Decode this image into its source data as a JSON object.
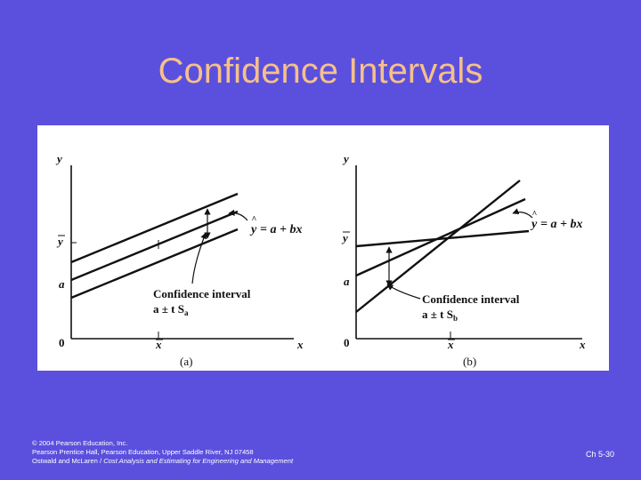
{
  "slide": {
    "title": "Confidence Intervals",
    "page_number": "Ch 5-30"
  },
  "footer": {
    "line1": "© 2004 Pearson Education, Inc.",
    "line2": "Pearson Prentice Hall, Pearson Education, Upper Saddle River, NJ 07458",
    "line3_prefix": "Ostwald and McLaren / ",
    "line3_italic": "Cost Analysis and Estimating for Engineering and Management"
  },
  "figure": {
    "panel_a": {
      "caption": "(a)",
      "y_axis_label": "y",
      "x_axis_label": "x",
      "origin_label": "0",
      "ybar_label": "y",
      "a_label": "a",
      "xbar_label": "x",
      "equation_lhs": "y",
      "equation_rhs": "= a + bx",
      "ci_label": "Confidence interval",
      "ci_formula_base": "a ± t S",
      "ci_formula_sub": "a"
    },
    "panel_b": {
      "caption": "(b)",
      "y_axis_label": "y",
      "x_axis_label": "x",
      "origin_label": "0",
      "ybar_label": "y",
      "a_label": "a",
      "xbar_label": "x",
      "equation_lhs": "y",
      "equation_rhs": "= a + bx",
      "ci_label": "Confidence interval",
      "ci_formula_base": "a ± t S",
      "ci_formula_sub": "b"
    }
  }
}
